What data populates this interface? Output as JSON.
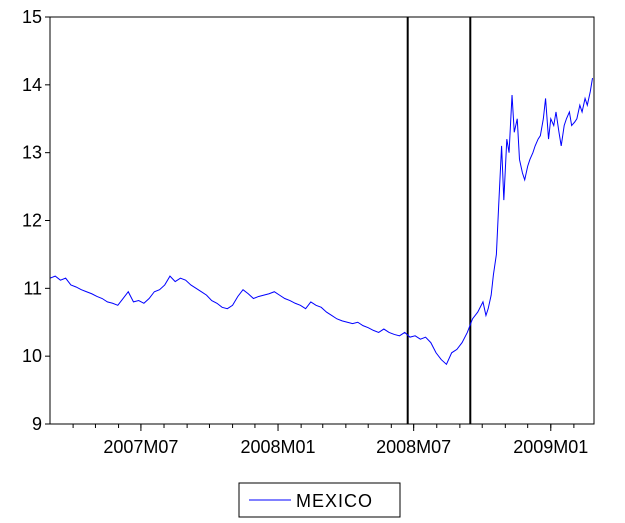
{
  "chart_data": {
    "type": "line",
    "title": "",
    "xlabel": "",
    "ylabel": "",
    "ylim": [
      9,
      15
    ],
    "y_ticks": [
      9,
      10,
      11,
      12,
      13,
      14,
      15
    ],
    "x_ticks": [
      "2007M07",
      "2008M01",
      "2008M07",
      "2009M01"
    ],
    "x_range": [
      "2007-03-01",
      "2009-02-28"
    ],
    "vertical_lines": [
      "2008-06-23",
      "2008-09-15"
    ],
    "legend": "bottom-center",
    "grid": false,
    "colors": {
      "series": "#0000ff",
      "axis": "#000000",
      "event_line": "#000000"
    },
    "series": [
      {
        "name": "MEXICO",
        "x": [
          "2007-03-01",
          "2007-03-08",
          "2007-03-15",
          "2007-03-22",
          "2007-03-29",
          "2007-04-05",
          "2007-04-12",
          "2007-04-19",
          "2007-04-26",
          "2007-05-03",
          "2007-05-10",
          "2007-05-17",
          "2007-05-24",
          "2007-05-31",
          "2007-06-07",
          "2007-06-14",
          "2007-06-21",
          "2007-06-28",
          "2007-07-05",
          "2007-07-12",
          "2007-07-19",
          "2007-07-26",
          "2007-08-02",
          "2007-08-09",
          "2007-08-16",
          "2007-08-23",
          "2007-08-30",
          "2007-09-06",
          "2007-09-13",
          "2007-09-20",
          "2007-09-27",
          "2007-10-04",
          "2007-10-11",
          "2007-10-18",
          "2007-10-25",
          "2007-11-01",
          "2007-11-08",
          "2007-11-15",
          "2007-11-22",
          "2007-11-29",
          "2007-12-06",
          "2007-12-13",
          "2007-12-20",
          "2007-12-27",
          "2008-01-03",
          "2008-01-10",
          "2008-01-17",
          "2008-01-24",
          "2008-01-31",
          "2008-02-07",
          "2008-02-14",
          "2008-02-21",
          "2008-02-28",
          "2008-03-06",
          "2008-03-13",
          "2008-03-20",
          "2008-03-27",
          "2008-04-03",
          "2008-04-10",
          "2008-04-17",
          "2008-04-24",
          "2008-05-01",
          "2008-05-08",
          "2008-05-15",
          "2008-05-22",
          "2008-05-29",
          "2008-06-05",
          "2008-06-12",
          "2008-06-19",
          "2008-06-26",
          "2008-07-03",
          "2008-07-10",
          "2008-07-17",
          "2008-07-24",
          "2008-07-31",
          "2008-08-07",
          "2008-08-14",
          "2008-08-21",
          "2008-08-28",
          "2008-09-04",
          "2008-09-11",
          "2008-09-18",
          "2008-09-25",
          "2008-10-02",
          "2008-10-06",
          "2008-10-09",
          "2008-10-13",
          "2008-10-16",
          "2008-10-20",
          "2008-10-23",
          "2008-10-27",
          "2008-10-30",
          "2008-11-03",
          "2008-11-06",
          "2008-11-10",
          "2008-11-13",
          "2008-11-17",
          "2008-11-20",
          "2008-11-24",
          "2008-11-27",
          "2008-12-01",
          "2008-12-04",
          "2008-12-08",
          "2008-12-11",
          "2008-12-15",
          "2008-12-18",
          "2008-12-22",
          "2008-12-25",
          "2008-12-29",
          "2009-01-01",
          "2009-01-05",
          "2009-01-08",
          "2009-01-12",
          "2009-01-15",
          "2009-01-19",
          "2009-01-22",
          "2009-01-26",
          "2009-01-29",
          "2009-02-02",
          "2009-02-05",
          "2009-02-09",
          "2009-02-12",
          "2009-02-16",
          "2009-02-19",
          "2009-02-23",
          "2009-02-26"
        ],
        "values": [
          11.15,
          11.18,
          11.12,
          11.15,
          11.05,
          11.02,
          10.98,
          10.95,
          10.92,
          10.88,
          10.85,
          10.8,
          10.78,
          10.75,
          10.85,
          10.95,
          10.8,
          10.82,
          10.78,
          10.85,
          10.95,
          10.98,
          11.05,
          11.18,
          11.1,
          11.15,
          11.12,
          11.05,
          11.0,
          10.95,
          10.9,
          10.82,
          10.78,
          10.72,
          10.7,
          10.75,
          10.88,
          10.98,
          10.92,
          10.85,
          10.88,
          10.9,
          10.92,
          10.95,
          10.9,
          10.85,
          10.82,
          10.78,
          10.75,
          10.7,
          10.8,
          10.75,
          10.72,
          10.65,
          10.6,
          10.55,
          10.52,
          10.5,
          10.48,
          10.5,
          10.45,
          10.42,
          10.38,
          10.35,
          10.4,
          10.35,
          10.32,
          10.3,
          10.35,
          10.28,
          10.3,
          10.25,
          10.28,
          10.2,
          10.05,
          9.95,
          9.88,
          10.05,
          10.1,
          10.2,
          10.35,
          10.55,
          10.65,
          10.8,
          10.6,
          10.7,
          10.9,
          11.2,
          11.5,
          12.2,
          13.1,
          12.3,
          13.2,
          13.0,
          13.85,
          13.3,
          13.5,
          12.9,
          12.7,
          12.6,
          12.8,
          12.9,
          13.0,
          13.1,
          13.2,
          13.25,
          13.5,
          13.8,
          13.2,
          13.5,
          13.4,
          13.6,
          13.3,
          13.1,
          13.4,
          13.5,
          13.6,
          13.4,
          13.45,
          13.5,
          13.7,
          13.6,
          13.8,
          13.7,
          13.9,
          14.1
        ]
      }
    ]
  }
}
